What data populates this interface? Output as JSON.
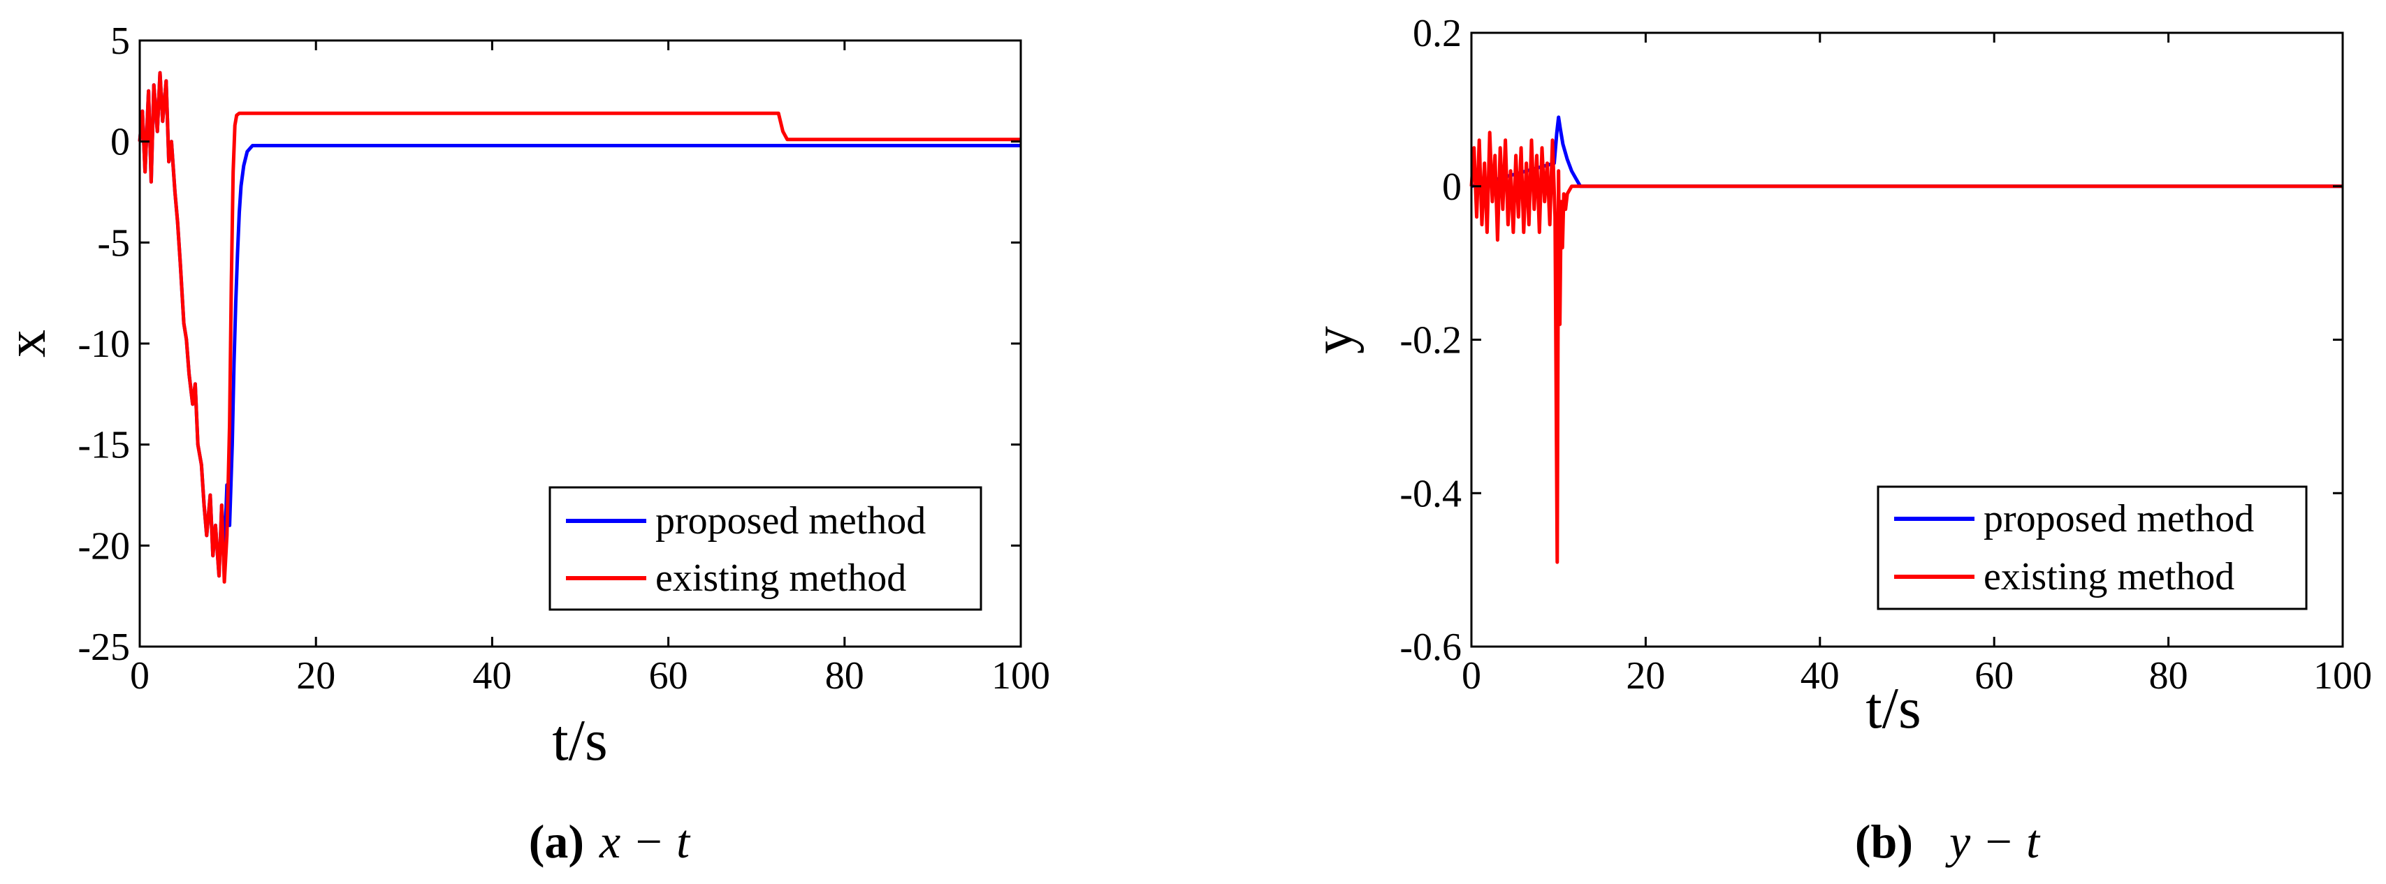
{
  "colors": {
    "proposed": "#0000ff",
    "existing": "#ff0000",
    "axis": "#000000",
    "background": "#ffffff"
  },
  "chart_data": [
    {
      "id": "a",
      "type": "line",
      "caption_letter": "(a)",
      "caption_expr": "x − t",
      "xlabel": "t/s",
      "ylabel": "x",
      "xlim": [
        0,
        100
      ],
      "ylim": [
        -25,
        5
      ],
      "xticks": [
        0,
        20,
        40,
        60,
        80,
        100
      ],
      "xtick_labels": [
        "0",
        "20",
        "40",
        "60",
        "80",
        "100"
      ],
      "yticks": [
        5,
        0,
        -5,
        -10,
        -15,
        -20,
        -25
      ],
      "ytick_labels": [
        "5",
        "0",
        "-5",
        "-10",
        "-15",
        "-20",
        "-25"
      ],
      "legend_position": "bottom-right",
      "series": [
        {
          "name": "proposed method",
          "color_key": "proposed",
          "x": [
            0,
            0.3,
            0.6,
            1.0,
            1.3,
            1.6,
            2.0,
            2.3,
            2.6,
            3.0,
            3.3,
            3.6,
            4.0,
            4.3,
            4.6,
            5.0,
            5.3,
            5.6,
            6.0,
            6.3,
            6.6,
            7.0,
            7.3,
            7.6,
            8.0,
            8.3,
            8.6,
            9.0,
            9.3,
            9.6,
            9.9,
            10.2,
            10.5,
            10.7,
            10.9,
            11.1,
            11.3,
            11.5,
            11.8,
            12.2,
            12.8,
            14,
            20,
            40,
            60,
            80,
            100
          ],
          "y": [
            0,
            1.5,
            -1.5,
            2.5,
            -2.0,
            2.8,
            0.5,
            3.4,
            1.0,
            3.0,
            -1.0,
            0.0,
            -2.5,
            -4.0,
            -6.0,
            -9.0,
            -9.8,
            -11.5,
            -13.0,
            -12.0,
            -15.0,
            -16.0,
            -18.0,
            -19.5,
            -17.5,
            -20.5,
            -19.0,
            -21.5,
            -18.0,
            -20.5,
            -17.0,
            -19.0,
            -15.0,
            -11.0,
            -8.0,
            -5.5,
            -3.5,
            -2.2,
            -1.2,
            -0.5,
            -0.2,
            -0.2,
            -0.2,
            -0.2,
            -0.2,
            -0.2,
            -0.2
          ]
        },
        {
          "name": "existing method",
          "color_key": "existing",
          "x": [
            0,
            0.3,
            0.6,
            1.0,
            1.3,
            1.6,
            2.0,
            2.3,
            2.6,
            3.0,
            3.3,
            3.6,
            4.0,
            4.3,
            4.6,
            5.0,
            5.3,
            5.6,
            6.0,
            6.3,
            6.6,
            7.0,
            7.3,
            7.6,
            8.0,
            8.3,
            8.6,
            9.0,
            9.3,
            9.6,
            9.9,
            10.2,
            10.4,
            10.6,
            10.8,
            11.0,
            11.3,
            12.0,
            20,
            40,
            60,
            72.5,
            73.0,
            73.5,
            80,
            100
          ],
          "y": [
            0,
            1.5,
            -1.5,
            2.5,
            -2.0,
            2.8,
            0.5,
            3.4,
            1.0,
            3.0,
            -1.0,
            0.0,
            -2.5,
            -4.0,
            -6.0,
            -9.0,
            -9.8,
            -11.5,
            -13.0,
            -12.0,
            -15.0,
            -16.0,
            -18.0,
            -19.5,
            -17.5,
            -20.5,
            -19.0,
            -21.5,
            -18.0,
            -21.8,
            -19.5,
            -14.0,
            -7.0,
            -1.5,
            0.8,
            1.3,
            1.4,
            1.4,
            1.4,
            1.4,
            1.4,
            1.4,
            0.5,
            0.1,
            0.1,
            0.1
          ]
        }
      ]
    },
    {
      "id": "b",
      "type": "line",
      "caption_letter": "(b)",
      "caption_expr": "y − t",
      "xlabel": "t/s",
      "ylabel": "y",
      "xlim": [
        0,
        100
      ],
      "ylim": [
        -0.6,
        0.2
      ],
      "xticks": [
        0,
        20,
        40,
        60,
        80,
        100
      ],
      "xtick_labels": [
        "0",
        "20",
        "40",
        "60",
        "80",
        "100"
      ],
      "yticks": [
        0.2,
        0,
        -0.2,
        -0.4,
        -0.6
      ],
      "ytick_labels": [
        "0.2",
        "0",
        "-0.2",
        "-0.4",
        "-0.6"
      ],
      "legend_position": "bottom-right",
      "series": [
        {
          "name": "proposed method",
          "color_key": "proposed",
          "x": [
            0,
            9.5,
            9.8,
            10.0,
            10.2,
            10.5,
            11.0,
            11.5,
            12.0,
            12.5,
            100
          ],
          "y": [
            0,
            0.03,
            0.07,
            0.09,
            0.075,
            0.055,
            0.035,
            0.02,
            0.01,
            0.0,
            0.0
          ]
        },
        {
          "name": "existing method",
          "color_key": "existing",
          "x": [
            0,
            0.3,
            0.6,
            0.9,
            1.2,
            1.5,
            1.8,
            2.1,
            2.4,
            2.7,
            3.0,
            3.3,
            3.6,
            3.9,
            4.2,
            4.5,
            4.8,
            5.1,
            5.4,
            5.7,
            6.0,
            6.3,
            6.6,
            6.9,
            7.2,
            7.5,
            7.8,
            8.1,
            8.4,
            8.7,
            9.0,
            9.3,
            9.6,
            9.85,
            10.0,
            10.15,
            10.3,
            10.45,
            10.6,
            10.8,
            11.0,
            11.5,
            12.0,
            20,
            100
          ],
          "y": [
            0,
            0.05,
            -0.04,
            0.06,
            -0.05,
            0.03,
            -0.06,
            0.07,
            -0.02,
            0.04,
            -0.07,
            0.05,
            -0.03,
            0.06,
            -0.05,
            0.02,
            -0.06,
            0.04,
            -0.04,
            0.05,
            -0.06,
            0.03,
            -0.05,
            0.06,
            -0.03,
            0.04,
            -0.06,
            0.05,
            -0.02,
            0.03,
            -0.05,
            0.06,
            -0.04,
            -0.49,
            0.02,
            -0.18,
            -0.02,
            -0.08,
            -0.01,
            -0.03,
            -0.01,
            0.0,
            0.0,
            0.0,
            0.0
          ]
        }
      ]
    }
  ]
}
